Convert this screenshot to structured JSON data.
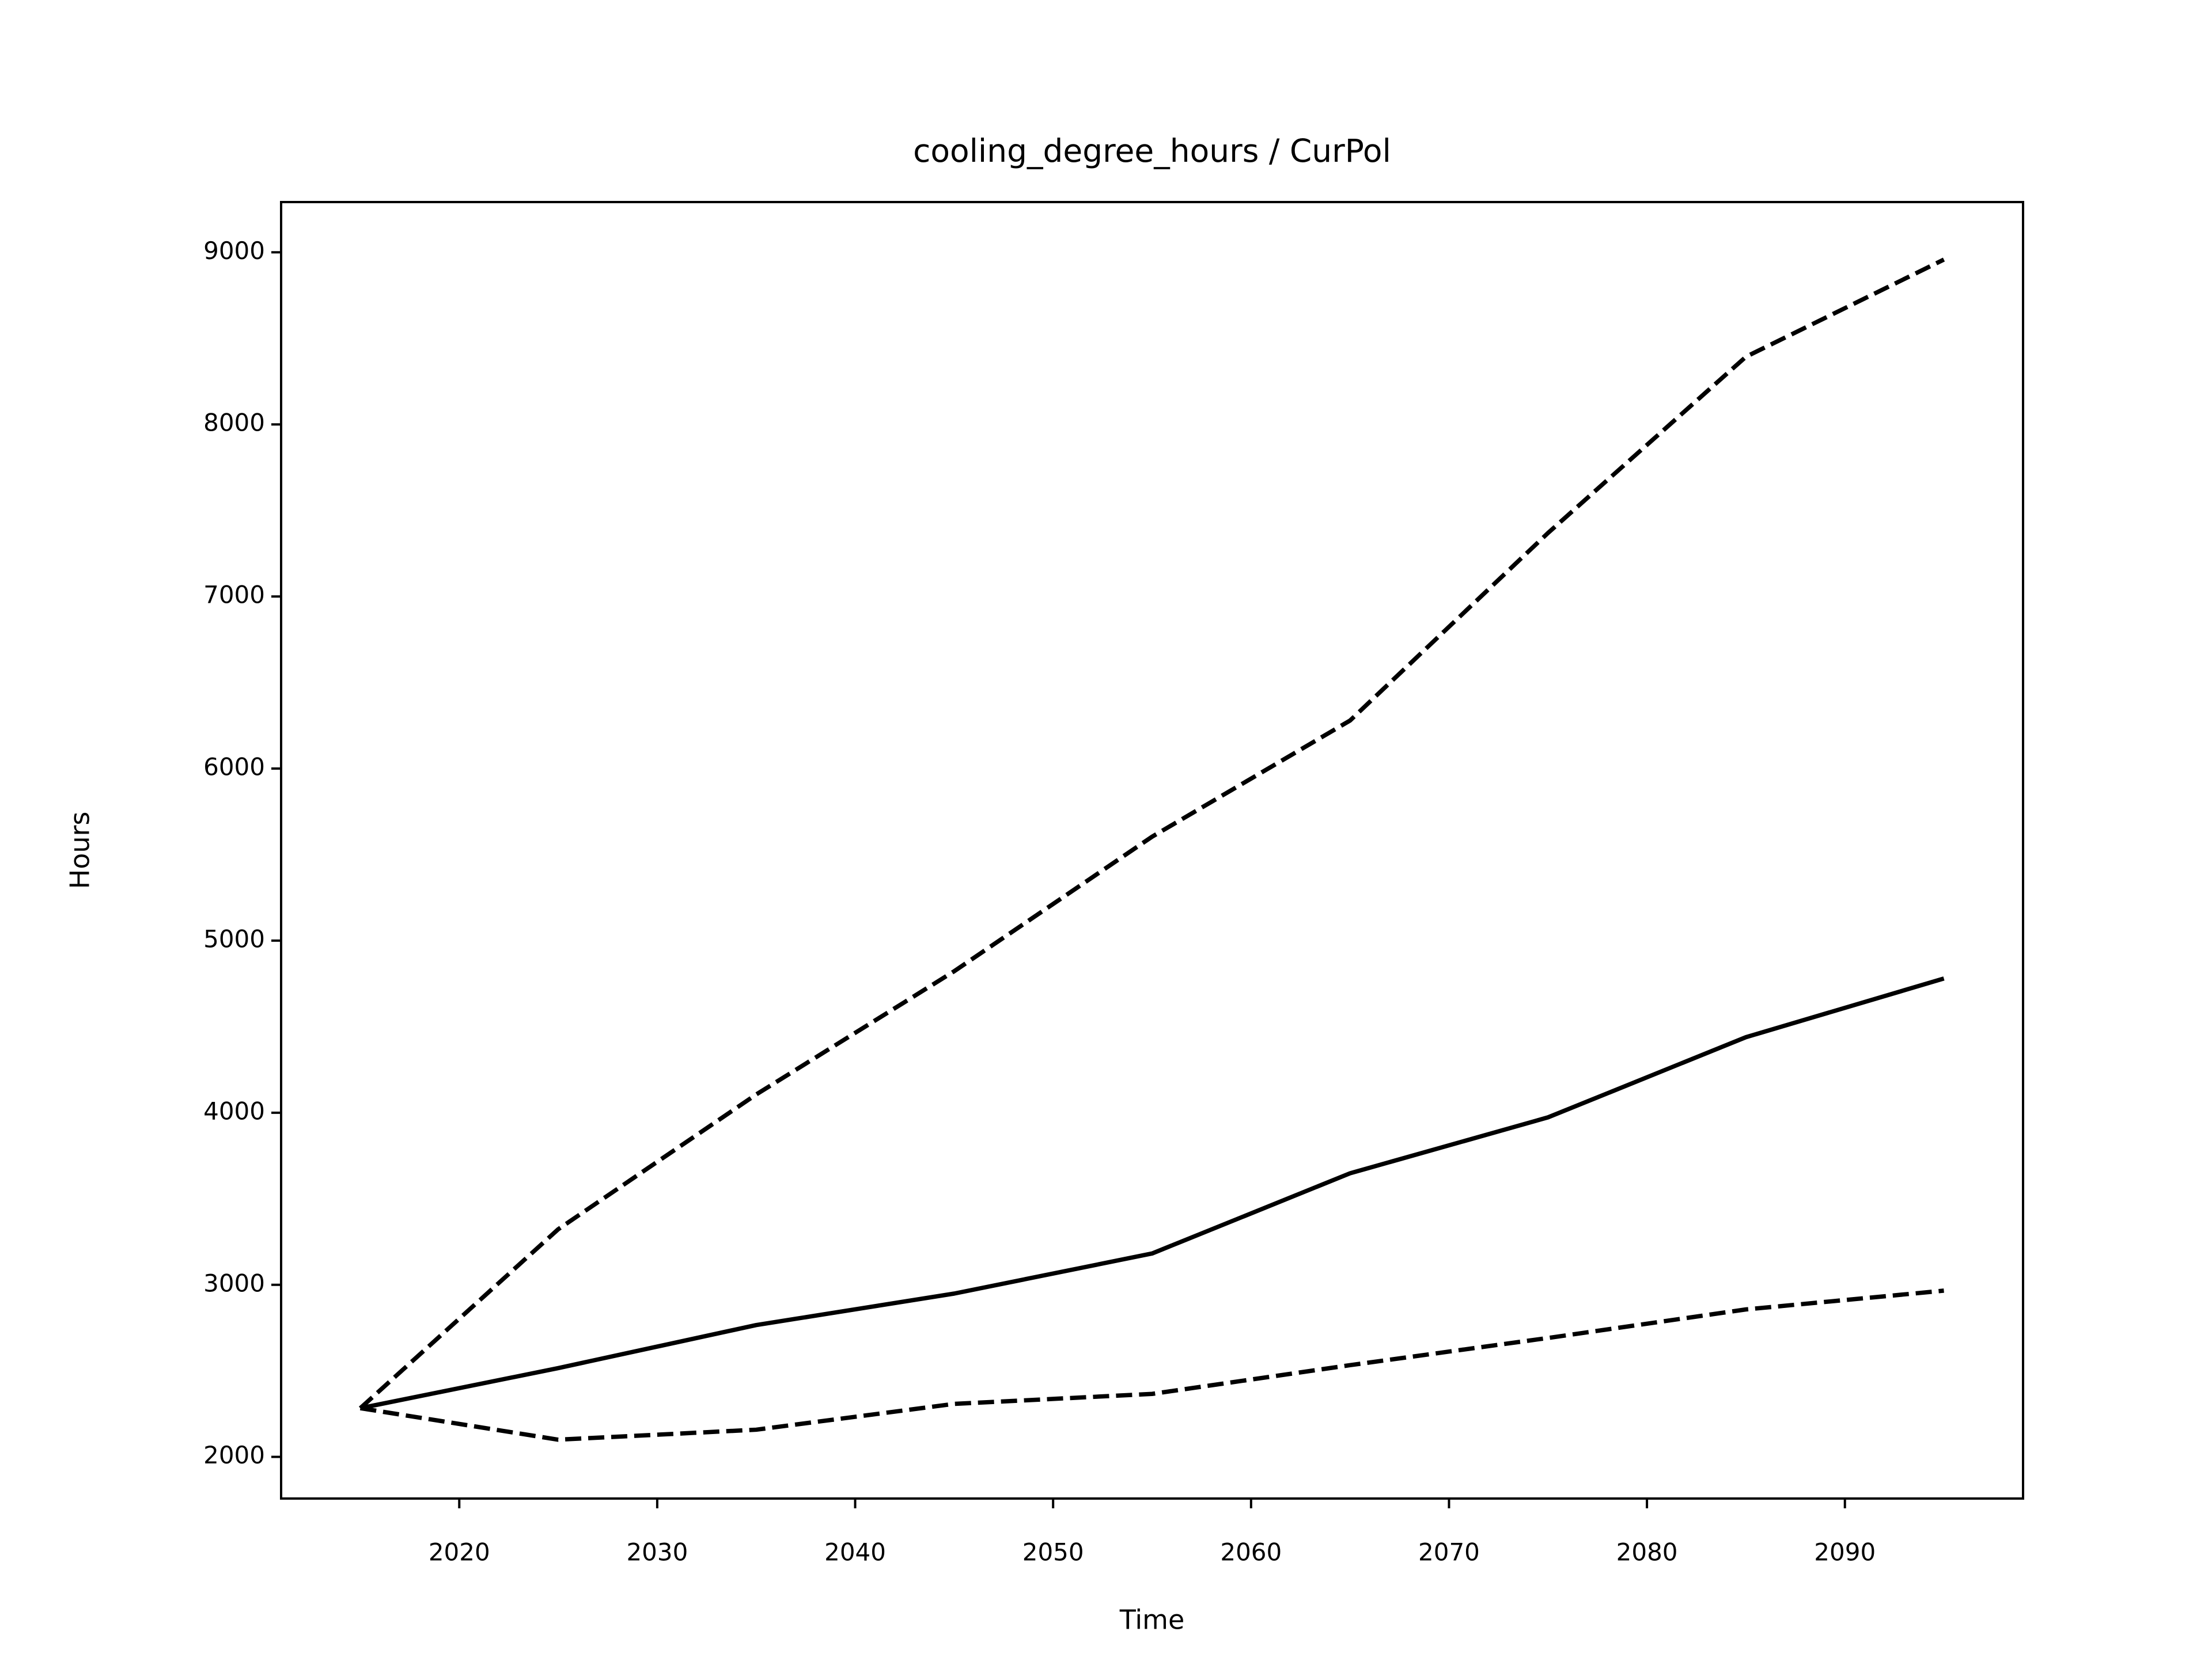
{
  "chart_data": {
    "type": "line",
    "title": "cooling_degree_hours / CurPol",
    "xlabel": "Time",
    "ylabel": "Hours",
    "x": [
      2015,
      2025,
      2035,
      2045,
      2055,
      2065,
      2075,
      2085,
      2095
    ],
    "series": [
      {
        "color": "#000000",
        "linestyle": "solid",
        "values": [
          2283,
          2516,
          2766,
          2949,
          3182,
          3648,
          3973,
          4439,
          4780
        ]
      },
      {
        "color": "#000000",
        "linestyle": "dashed",
        "values": [
          2283,
          3323,
          4106,
          4822,
          5604,
          6279,
          7369,
          8393,
          8958
        ]
      },
      {
        "color": "#000000",
        "linestyle": "dashed",
        "values": [
          2283,
          2100,
          2158,
          2308,
          2366,
          2533,
          2691,
          2857,
          2966
        ]
      }
    ],
    "xlim": [
      2011,
      2099
    ],
    "xticks": [
      2020,
      2030,
      2040,
      2050,
      2060,
      2070,
      2080,
      2090
    ],
    "ylim": [
      1758,
      9292
    ],
    "yticks": [
      2000,
      3000,
      4000,
      5000,
      6000,
      7000,
      8000,
      9000
    ],
    "grid": false
  }
}
